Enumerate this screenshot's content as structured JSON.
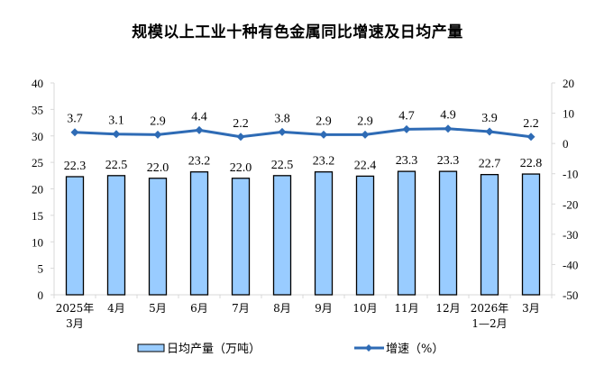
{
  "chart_data": {
    "type": "bar+line",
    "title": "规模以上工业十种有色金属同比增速及日均产量",
    "categories": [
      [
        "2025年",
        "3月"
      ],
      [
        "4月"
      ],
      [
        "5月"
      ],
      [
        "6月"
      ],
      [
        "7月"
      ],
      [
        "8月"
      ],
      [
        "9月"
      ],
      [
        "10月"
      ],
      [
        "11月"
      ],
      [
        "12月"
      ],
      [
        "2026年",
        "1—2月"
      ],
      [
        "3月"
      ]
    ],
    "series": [
      {
        "name": "日均产量（万吨）",
        "type": "bar",
        "axis": "left",
        "color": "#99ccff",
        "values": [
          22.3,
          22.5,
          22.0,
          23.2,
          22.0,
          22.5,
          23.2,
          22.4,
          23.3,
          23.3,
          22.7,
          22.8
        ]
      },
      {
        "name": "增速（%）",
        "type": "line",
        "axis": "right",
        "color": "#2e6bb5",
        "values": [
          3.7,
          3.1,
          2.9,
          4.4,
          2.2,
          3.8,
          2.9,
          2.9,
          4.7,
          4.9,
          3.9,
          2.2
        ]
      }
    ],
    "left_axis": {
      "ylim": [
        0,
        40
      ],
      "ticks": [
        0,
        5,
        10,
        15,
        20,
        25,
        30,
        35,
        40
      ]
    },
    "right_axis": {
      "ylim": [
        -50,
        20
      ],
      "ticks": [
        -50,
        -40,
        -30,
        -20,
        -10,
        0,
        10,
        20
      ]
    },
    "legend_position": "bottom",
    "grid": false
  }
}
